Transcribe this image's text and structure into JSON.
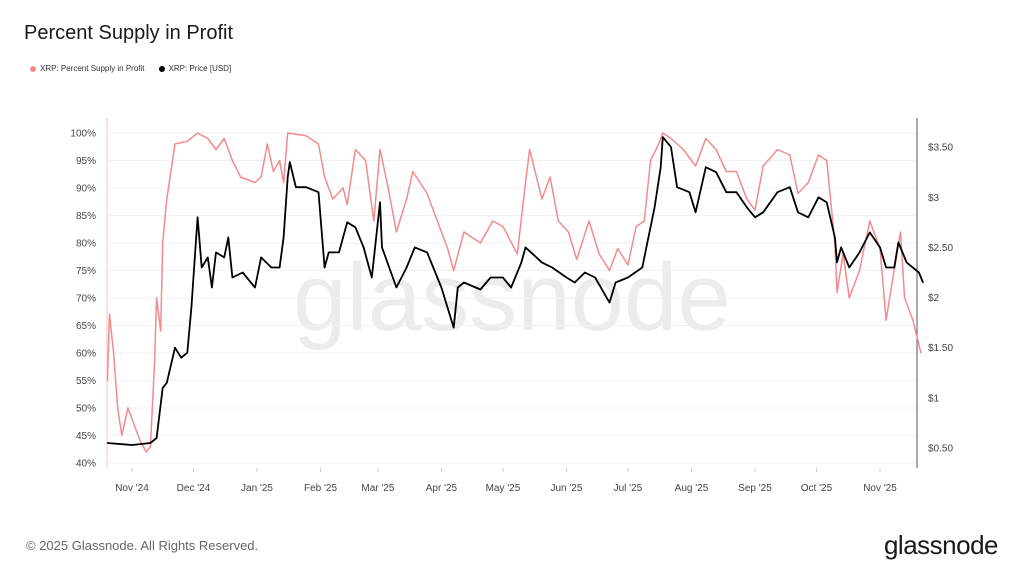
{
  "header": {
    "title": "Percent Supply in Profit"
  },
  "footer": {
    "copyright": "© 2025 Glassnode. All Rights Reserved.",
    "logo": "glassnode"
  },
  "watermark": "glassnode",
  "chart_data": {
    "type": "line",
    "title": "Percent Supply in Profit",
    "legend_position": "top-left",
    "grid": true,
    "x_ticks": [
      "Nov '24",
      "Dec '24",
      "Jan '25",
      "Feb '25",
      "Mar '25",
      "Apr '25",
      "May '25",
      "Jun '25",
      "Jul '25",
      "Aug '25",
      "Sep '25",
      "Oct '25",
      "Nov '25"
    ],
    "x_tick_dates": [
      "2024-11-01",
      "2024-12-01",
      "2025-01-01",
      "2025-02-01",
      "2025-03-01",
      "2025-04-01",
      "2025-05-01",
      "2025-06-01",
      "2025-07-01",
      "2025-08-01",
      "2025-09-01",
      "2025-10-01",
      "2025-11-01"
    ],
    "y_left": {
      "ticks": [
        "40%",
        "45%",
        "50%",
        "55%",
        "60%",
        "65%",
        "70%",
        "75%",
        "80%",
        "85%",
        "90%",
        "95%",
        "100%"
      ],
      "range": [
        40,
        100
      ]
    },
    "y_right": {
      "ticks": [
        "$0.50",
        "$1",
        "$1.50",
        "$2",
        "$2.50",
        "$3",
        "$3.50"
      ],
      "tick_values": [
        0.5,
        1,
        1.5,
        2,
        2.5,
        3,
        3.5
      ],
      "range": [
        0.5,
        3.5
      ]
    },
    "series": [
      {
        "name": "XRP: Percent Supply in Profit",
        "color": "#f28b8b",
        "axis": "left",
        "points": [
          [
            "2024-10-20",
            55
          ],
          [
            "2024-10-21",
            67
          ],
          [
            "2024-10-23",
            60
          ],
          [
            "2024-10-25",
            50
          ],
          [
            "2024-10-27",
            45
          ],
          [
            "2024-10-30",
            50
          ],
          [
            "2024-11-02",
            47
          ],
          [
            "2024-11-05",
            44
          ],
          [
            "2024-11-08",
            42
          ],
          [
            "2024-11-10",
            43
          ],
          [
            "2024-11-12",
            58
          ],
          [
            "2024-11-13",
            70
          ],
          [
            "2024-11-15",
            64
          ],
          [
            "2024-11-16",
            80
          ],
          [
            "2024-11-18",
            88
          ],
          [
            "2024-11-20",
            93
          ],
          [
            "2024-11-22",
            98
          ],
          [
            "2024-11-28",
            98.5
          ],
          [
            "2024-12-03",
            100
          ],
          [
            "2024-12-08",
            99
          ],
          [
            "2024-12-12",
            97
          ],
          [
            "2024-12-16",
            99
          ],
          [
            "2024-12-20",
            95
          ],
          [
            "2024-12-24",
            92
          ],
          [
            "2024-12-31",
            91
          ],
          [
            "2025-01-03",
            92
          ],
          [
            "2025-01-06",
            98
          ],
          [
            "2025-01-09",
            93
          ],
          [
            "2025-01-12",
            95
          ],
          [
            "2025-01-14",
            91
          ],
          [
            "2025-01-16",
            100
          ],
          [
            "2025-01-25",
            99.5
          ],
          [
            "2025-01-31",
            98
          ],
          [
            "2025-02-03",
            92
          ],
          [
            "2025-02-07",
            88
          ],
          [
            "2025-02-12",
            90
          ],
          [
            "2025-02-14",
            87
          ],
          [
            "2025-02-18",
            97
          ],
          [
            "2025-02-23",
            95
          ],
          [
            "2025-02-27",
            84
          ],
          [
            "2025-03-02",
            97
          ],
          [
            "2025-03-06",
            90
          ],
          [
            "2025-03-10",
            82
          ],
          [
            "2025-03-15",
            88
          ],
          [
            "2025-03-18",
            93
          ],
          [
            "2025-03-25",
            89
          ],
          [
            "2025-04-01",
            82
          ],
          [
            "2025-04-04",
            79
          ],
          [
            "2025-04-07",
            75
          ],
          [
            "2025-04-12",
            82
          ],
          [
            "2025-04-20",
            80
          ],
          [
            "2025-04-26",
            84
          ],
          [
            "2025-05-01",
            83
          ],
          [
            "2025-05-08",
            78
          ],
          [
            "2025-05-12",
            91
          ],
          [
            "2025-05-14",
            97
          ],
          [
            "2025-05-20",
            88
          ],
          [
            "2025-05-24",
            92
          ],
          [
            "2025-05-28",
            84
          ],
          [
            "2025-06-02",
            82
          ],
          [
            "2025-06-06",
            77
          ],
          [
            "2025-06-12",
            84
          ],
          [
            "2025-06-17",
            78
          ],
          [
            "2025-06-22",
            75
          ],
          [
            "2025-06-26",
            79
          ],
          [
            "2025-07-01",
            76
          ],
          [
            "2025-07-05",
            83
          ],
          [
            "2025-07-09",
            84
          ],
          [
            "2025-07-12",
            95
          ],
          [
            "2025-07-16",
            98
          ],
          [
            "2025-07-18",
            100
          ],
          [
            "2025-07-22",
            99
          ],
          [
            "2025-07-28",
            97
          ],
          [
            "2025-08-03",
            94
          ],
          [
            "2025-08-08",
            99
          ],
          [
            "2025-08-13",
            97
          ],
          [
            "2025-08-18",
            93
          ],
          [
            "2025-08-23",
            93
          ],
          [
            "2025-08-28",
            88
          ],
          [
            "2025-09-01",
            86
          ],
          [
            "2025-09-05",
            94
          ],
          [
            "2025-09-12",
            97
          ],
          [
            "2025-09-18",
            96
          ],
          [
            "2025-09-22",
            89
          ],
          [
            "2025-09-27",
            91
          ],
          [
            "2025-10-02",
            96
          ],
          [
            "2025-10-06",
            95
          ],
          [
            "2025-10-10",
            80
          ],
          [
            "2025-10-11",
            71
          ],
          [
            "2025-10-14",
            78
          ],
          [
            "2025-10-17",
            70
          ],
          [
            "2025-10-22",
            75
          ],
          [
            "2025-10-27",
            84
          ],
          [
            "2025-11-01",
            79
          ],
          [
            "2025-11-04",
            66
          ],
          [
            "2025-11-07",
            73
          ],
          [
            "2025-11-11",
            82
          ],
          [
            "2025-11-13",
            70
          ],
          [
            "2025-11-17",
            66
          ],
          [
            "2025-11-21",
            60
          ]
        ]
      },
      {
        "name": "XRP: Price [USD]",
        "color": "#000000",
        "axis": "right",
        "points": [
          [
            "2024-10-20",
            0.55
          ],
          [
            "2024-11-01",
            0.53
          ],
          [
            "2024-11-10",
            0.55
          ],
          [
            "2024-11-13",
            0.6
          ],
          [
            "2024-11-16",
            1.1
          ],
          [
            "2024-11-18",
            1.15
          ],
          [
            "2024-11-22",
            1.5
          ],
          [
            "2024-11-25",
            1.4
          ],
          [
            "2024-11-28",
            1.45
          ],
          [
            "2024-11-30",
            1.9
          ],
          [
            "2024-12-02",
            2.5
          ],
          [
            "2024-12-03",
            2.8
          ],
          [
            "2024-12-05",
            2.3
          ],
          [
            "2024-12-08",
            2.4
          ],
          [
            "2024-12-10",
            2.1
          ],
          [
            "2024-12-12",
            2.45
          ],
          [
            "2024-12-16",
            2.4
          ],
          [
            "2024-12-18",
            2.6
          ],
          [
            "2024-12-20",
            2.2
          ],
          [
            "2024-12-25",
            2.25
          ],
          [
            "2024-12-31",
            2.1
          ],
          [
            "2025-01-03",
            2.4
          ],
          [
            "2025-01-08",
            2.3
          ],
          [
            "2025-01-12",
            2.3
          ],
          [
            "2025-01-14",
            2.6
          ],
          [
            "2025-01-16",
            3.2
          ],
          [
            "2025-01-17",
            3.35
          ],
          [
            "2025-01-20",
            3.1
          ],
          [
            "2025-01-25",
            3.1
          ],
          [
            "2025-01-31",
            3.05
          ],
          [
            "2025-02-03",
            2.3
          ],
          [
            "2025-02-05",
            2.45
          ],
          [
            "2025-02-10",
            2.45
          ],
          [
            "2025-02-14",
            2.75
          ],
          [
            "2025-02-18",
            2.7
          ],
          [
            "2025-02-22",
            2.5
          ],
          [
            "2025-02-26",
            2.2
          ],
          [
            "2025-03-02",
            2.95
          ],
          [
            "2025-03-03",
            2.5
          ],
          [
            "2025-03-10",
            2.1
          ],
          [
            "2025-03-15",
            2.3
          ],
          [
            "2025-03-19",
            2.5
          ],
          [
            "2025-03-25",
            2.45
          ],
          [
            "2025-04-01",
            2.1
          ],
          [
            "2025-04-07",
            1.7
          ],
          [
            "2025-04-09",
            2.1
          ],
          [
            "2025-04-12",
            2.15
          ],
          [
            "2025-04-20",
            2.08
          ],
          [
            "2025-04-25",
            2.2
          ],
          [
            "2025-05-01",
            2.2
          ],
          [
            "2025-05-05",
            2.1
          ],
          [
            "2025-05-10",
            2.35
          ],
          [
            "2025-05-12",
            2.5
          ],
          [
            "2025-05-20",
            2.35
          ],
          [
            "2025-05-25",
            2.3
          ],
          [
            "2025-06-01",
            2.2
          ],
          [
            "2025-06-05",
            2.15
          ],
          [
            "2025-06-10",
            2.25
          ],
          [
            "2025-06-15",
            2.2
          ],
          [
            "2025-06-22",
            1.95
          ],
          [
            "2025-06-25",
            2.15
          ],
          [
            "2025-07-01",
            2.2
          ],
          [
            "2025-07-08",
            2.3
          ],
          [
            "2025-07-11",
            2.6
          ],
          [
            "2025-07-14",
            2.9
          ],
          [
            "2025-07-17",
            3.3
          ],
          [
            "2025-07-18",
            3.6
          ],
          [
            "2025-07-22",
            3.5
          ],
          [
            "2025-07-25",
            3.1
          ],
          [
            "2025-07-31",
            3.05
          ],
          [
            "2025-08-03",
            2.85
          ],
          [
            "2025-08-08",
            3.3
          ],
          [
            "2025-08-13",
            3.25
          ],
          [
            "2025-08-18",
            3.05
          ],
          [
            "2025-08-23",
            3.05
          ],
          [
            "2025-08-28",
            2.9
          ],
          [
            "2025-09-01",
            2.8
          ],
          [
            "2025-09-05",
            2.85
          ],
          [
            "2025-09-12",
            3.05
          ],
          [
            "2025-09-18",
            3.1
          ],
          [
            "2025-09-22",
            2.85
          ],
          [
            "2025-09-27",
            2.8
          ],
          [
            "2025-10-02",
            3.0
          ],
          [
            "2025-10-06",
            2.95
          ],
          [
            "2025-10-10",
            2.6
          ],
          [
            "2025-10-11",
            2.35
          ],
          [
            "2025-10-13",
            2.5
          ],
          [
            "2025-10-17",
            2.3
          ],
          [
            "2025-10-22",
            2.45
          ],
          [
            "2025-10-27",
            2.65
          ],
          [
            "2025-11-01",
            2.5
          ],
          [
            "2025-11-04",
            2.3
          ],
          [
            "2025-11-08",
            2.3
          ],
          [
            "2025-11-10",
            2.55
          ],
          [
            "2025-11-14",
            2.35
          ],
          [
            "2025-11-20",
            2.25
          ],
          [
            "2025-11-22",
            2.15
          ]
        ]
      }
    ]
  }
}
